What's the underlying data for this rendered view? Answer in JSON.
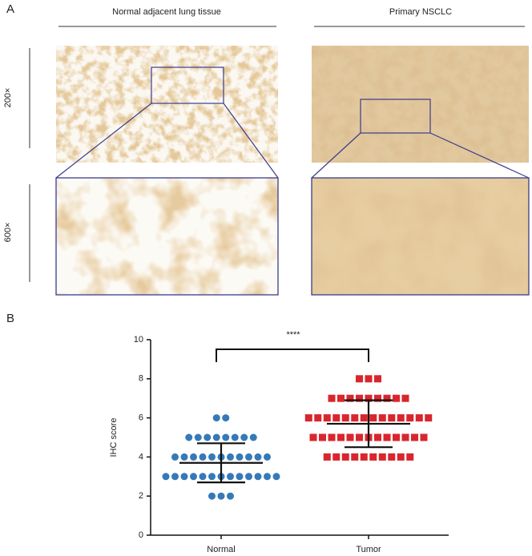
{
  "panel_a": {
    "label": "A",
    "columns": [
      "Normal adjacent lung tissue",
      "Primary NSCLC"
    ],
    "rows": [
      "200×",
      "600×"
    ]
  },
  "chart_data": {
    "type": "scatter",
    "panel_label": "B",
    "ylabel": "IHC score",
    "categories": [
      "Normal",
      "Tumor"
    ],
    "significance": "****",
    "ylim": [
      0,
      10
    ],
    "yticks": [
      0,
      2,
      4,
      6,
      8,
      10
    ],
    "series": [
      {
        "color": "#3579b8",
        "marker": "circle",
        "mean": 3.7,
        "sd": 1.0,
        "values": [
          6,
          6,
          5,
          5,
          5,
          5,
          5,
          5,
          5,
          5,
          4,
          4,
          4,
          4,
          4,
          4,
          4,
          4,
          4,
          4,
          4,
          3,
          3,
          3,
          3,
          3,
          3,
          3,
          3,
          3,
          3,
          3,
          3,
          3,
          2,
          2,
          2
        ]
      },
      {
        "color": "#d8262e",
        "marker": "square",
        "mean": 5.7,
        "sd": 1.2,
        "values": [
          8,
          8,
          8,
          7,
          7,
          7,
          7,
          7,
          7,
          7,
          7,
          7,
          6,
          6,
          6,
          6,
          6,
          6,
          6,
          6,
          6,
          6,
          6,
          6,
          6,
          6,
          5,
          5,
          5,
          5,
          5,
          5,
          5,
          5,
          5,
          5,
          5,
          5,
          5,
          4,
          4,
          4,
          4,
          4,
          4,
          4,
          4,
          4,
          4
        ]
      }
    ]
  }
}
